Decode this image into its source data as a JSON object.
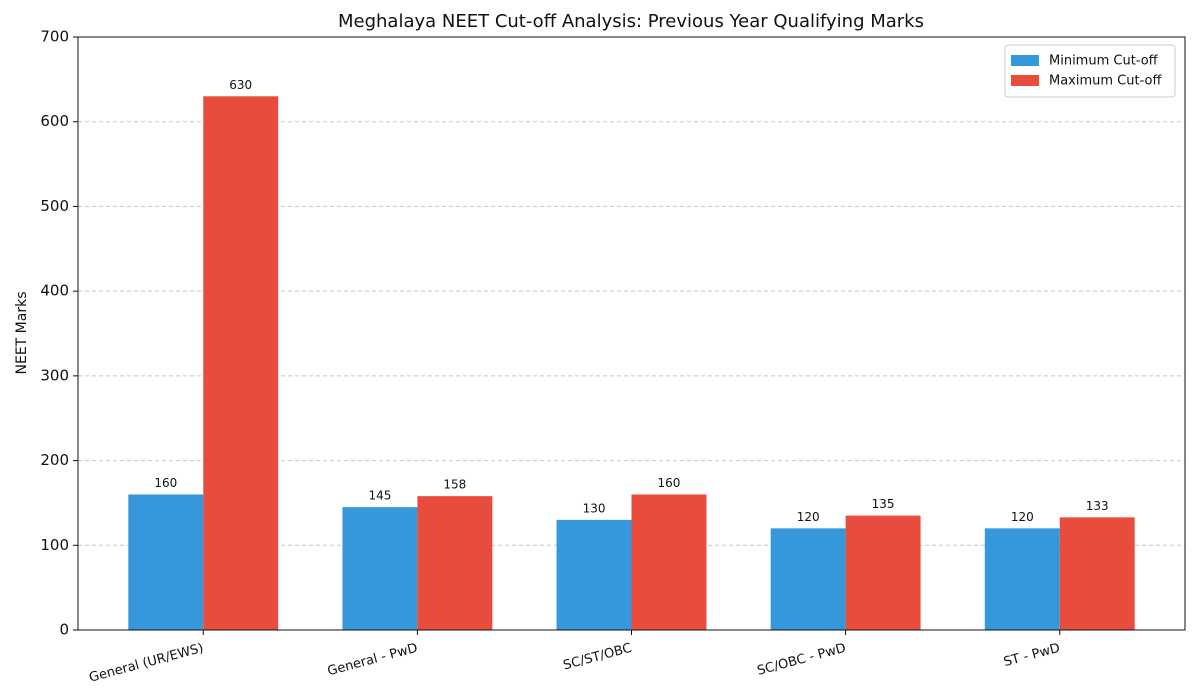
{
  "chart_data": {
    "type": "bar",
    "title": "Meghalaya NEET Cut-off Analysis: Previous Year Qualifying Marks",
    "y_label": "NEET Marks",
    "categories": [
      "General (UR/EWS)",
      "General - PwD",
      "SC/ST/OBC",
      "SC/OBC - PwD",
      "ST - PwD"
    ],
    "series": [
      {
        "name": "Minimum Cut-off",
        "color": "#3498db",
        "values": [
          160,
          145,
          130,
          120,
          120
        ]
      },
      {
        "name": "Maximum Cut-off",
        "color": "#e74c3c",
        "values": [
          630,
          158,
          160,
          135,
          133
        ]
      }
    ],
    "ylim": [
      0,
      700
    ],
    "yticks": [
      0,
      100,
      200,
      300,
      400,
      500,
      600,
      700
    ],
    "grid": true,
    "legend": "upper right"
  }
}
